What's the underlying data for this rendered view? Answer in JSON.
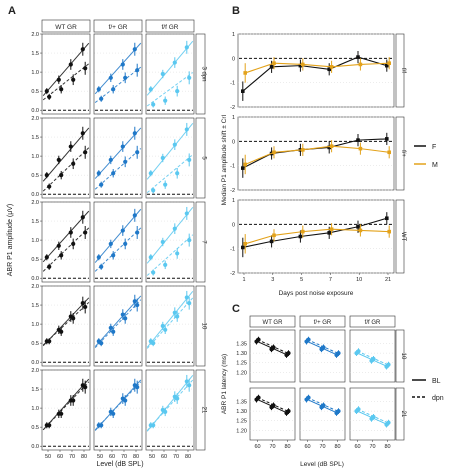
{
  "chart_data": [
    {
      "panel": "A",
      "type": "line",
      "ylabel": "ABR P1 amplitude (μV)",
      "xlabel": "Level (dB SPL)",
      "x": [
        50,
        60,
        70,
        80
      ],
      "xlim": [
        45,
        85
      ],
      "ylim": [
        -0.1,
        2.0
      ],
      "yticks": [
        "0.0",
        "0.5",
        "1.0",
        "1.5",
        "2.0"
      ],
      "columns": [
        "WT GR",
        "f/+ GR",
        "f/f GR"
      ],
      "rows": [
        "3 dpn",
        "5",
        "7",
        "10",
        "21"
      ],
      "reference_line": 0,
      "series": [
        {
          "row": "3 dpn",
          "col": "WT GR",
          "bl": [
            0.5,
            0.8,
            1.2,
            1.6
          ],
          "dpn": [
            0.35,
            0.55,
            0.8,
            1.1
          ]
        },
        {
          "row": "3 dpn",
          "col": "f/+ GR",
          "bl": [
            0.55,
            0.85,
            1.2,
            1.6
          ],
          "dpn": [
            0.3,
            0.55,
            0.85,
            1.05
          ]
        },
        {
          "row": "3 dpn",
          "col": "f/f GR",
          "bl": [
            0.55,
            0.95,
            1.25,
            1.65
          ],
          "dpn": [
            0.15,
            0.25,
            0.5,
            0.85
          ]
        },
        {
          "row": "5",
          "col": "WT GR",
          "bl": [
            0.5,
            0.9,
            1.25,
            1.6
          ],
          "dpn": [
            0.2,
            0.5,
            0.8,
            1.1
          ]
        },
        {
          "row": "5",
          "col": "f/+ GR",
          "bl": [
            0.55,
            0.9,
            1.25,
            1.6
          ],
          "dpn": [
            0.25,
            0.55,
            0.85,
            1.1
          ]
        },
        {
          "row": "5",
          "col": "f/f GR",
          "bl": [
            0.55,
            0.95,
            1.3,
            1.7
          ],
          "dpn": [
            0.1,
            0.25,
            0.55,
            0.9
          ]
        },
        {
          "row": "7",
          "col": "WT GR",
          "bl": [
            0.55,
            0.85,
            1.2,
            1.6
          ],
          "dpn": [
            0.3,
            0.6,
            0.9,
            1.2
          ]
        },
        {
          "row": "7",
          "col": "f/+ GR",
          "bl": [
            0.55,
            0.9,
            1.25,
            1.65
          ],
          "dpn": [
            0.3,
            0.6,
            0.9,
            1.2
          ]
        },
        {
          "row": "7",
          "col": "f/f GR",
          "bl": [
            0.55,
            0.95,
            1.3,
            1.7
          ],
          "dpn": [
            0.15,
            0.35,
            0.65,
            1.0
          ]
        },
        {
          "row": "10",
          "col": "WT GR",
          "bl": [
            0.55,
            0.85,
            1.2,
            1.55
          ],
          "dpn": [
            0.55,
            0.8,
            1.15,
            1.45
          ]
        },
        {
          "row": "10",
          "col": "f/+ GR",
          "bl": [
            0.55,
            0.9,
            1.25,
            1.6
          ],
          "dpn": [
            0.5,
            0.8,
            1.15,
            1.5
          ]
        },
        {
          "row": "10",
          "col": "f/f GR",
          "bl": [
            0.55,
            0.95,
            1.3,
            1.7
          ],
          "dpn": [
            0.5,
            0.85,
            1.2,
            1.55
          ]
        },
        {
          "row": "21",
          "col": "WT GR",
          "bl": [
            0.55,
            0.85,
            1.2,
            1.6
          ],
          "dpn": [
            0.55,
            0.85,
            1.2,
            1.55
          ]
        },
        {
          "row": "21",
          "col": "f/+ GR",
          "bl": [
            0.55,
            0.9,
            1.25,
            1.6
          ],
          "dpn": [
            0.55,
            0.85,
            1.2,
            1.55
          ]
        },
        {
          "row": "21",
          "col": "f/f GR",
          "bl": [
            0.55,
            0.95,
            1.3,
            1.7
          ],
          "dpn": [
            0.55,
            0.9,
            1.25,
            1.6
          ]
        }
      ],
      "colors": {
        "WT GR": "#111111",
        "f/+ GR": "#1f78c8",
        "f/f GR": "#5ac8f0"
      }
    },
    {
      "panel": "B",
      "type": "line",
      "ylabel": "Median P1 amplitude shift ± CrI",
      "xlabel": "Days post noise exposure",
      "x": [
        1,
        3,
        5,
        7,
        10,
        21
      ],
      "ylim": [
        -2,
        1
      ],
      "yticks": [
        "-2",
        "-1",
        "0",
        "1"
      ],
      "rows": [
        "f/f",
        "f/+",
        "WT"
      ],
      "reference_line": 0,
      "legend": [
        "F",
        "M"
      ],
      "series_colors": {
        "F": "#111111",
        "M": "#e3a21a"
      },
      "series": [
        {
          "row": "f/f",
          "F": [
            -1.35,
            -0.35,
            -0.3,
            -0.45,
            0.05,
            -0.3
          ],
          "M": [
            -0.6,
            -0.2,
            -0.25,
            -0.35,
            -0.25,
            -0.2
          ]
        },
        {
          "row": "f/+",
          "F": [
            -1.1,
            -0.5,
            -0.35,
            -0.25,
            0.05,
            0.1
          ],
          "M": [
            -0.95,
            -0.45,
            -0.35,
            -0.2,
            -0.3,
            -0.45
          ]
        },
        {
          "row": "WT",
          "F": [
            -0.95,
            -0.7,
            -0.5,
            -0.35,
            -0.1,
            0.25
          ],
          "M": [
            -0.8,
            -0.45,
            -0.3,
            -0.2,
            -0.25,
            -0.3
          ]
        }
      ]
    },
    {
      "panel": "C",
      "type": "line",
      "ylabel": "ABR P1 latency (ms)",
      "xlabel": "Level (dB SPL)",
      "x": [
        60,
        70,
        80
      ],
      "xlim": [
        55,
        85
      ],
      "ylim": [
        1.15,
        1.42
      ],
      "yticks": [
        "1.20",
        "1.25",
        "1.30",
        "1.35"
      ],
      "columns": [
        "WT GR",
        "f/+ GR",
        "f/f GR"
      ],
      "rows": [
        "10",
        "21"
      ],
      "legend": [
        "BL",
        "dpn"
      ],
      "series": [
        {
          "row": "10",
          "col": "WT GR",
          "bl": [
            1.36,
            1.32,
            1.29
          ],
          "dpn": [
            1.37,
            1.33,
            1.3
          ]
        },
        {
          "row": "10",
          "col": "f/+ GR",
          "bl": [
            1.36,
            1.32,
            1.29
          ],
          "dpn": [
            1.37,
            1.33,
            1.3
          ]
        },
        {
          "row": "10",
          "col": "f/f GR",
          "bl": [
            1.3,
            1.26,
            1.23
          ],
          "dpn": [
            1.31,
            1.27,
            1.24
          ]
        },
        {
          "row": "21",
          "col": "WT GR",
          "bl": [
            1.36,
            1.32,
            1.29
          ],
          "dpn": [
            1.37,
            1.33,
            1.3
          ]
        },
        {
          "row": "21",
          "col": "f/+ GR",
          "bl": [
            1.36,
            1.32,
            1.29
          ],
          "dpn": [
            1.37,
            1.33,
            1.3
          ]
        },
        {
          "row": "21",
          "col": "f/f GR",
          "bl": [
            1.3,
            1.26,
            1.23
          ],
          "dpn": [
            1.31,
            1.27,
            1.24
          ]
        }
      ],
      "colors": {
        "WT GR": "#111111",
        "f/+ GR": "#1f78c8",
        "f/f GR": "#5ac8f0"
      }
    }
  ],
  "panel_letters": [
    "A",
    "B",
    "C"
  ]
}
